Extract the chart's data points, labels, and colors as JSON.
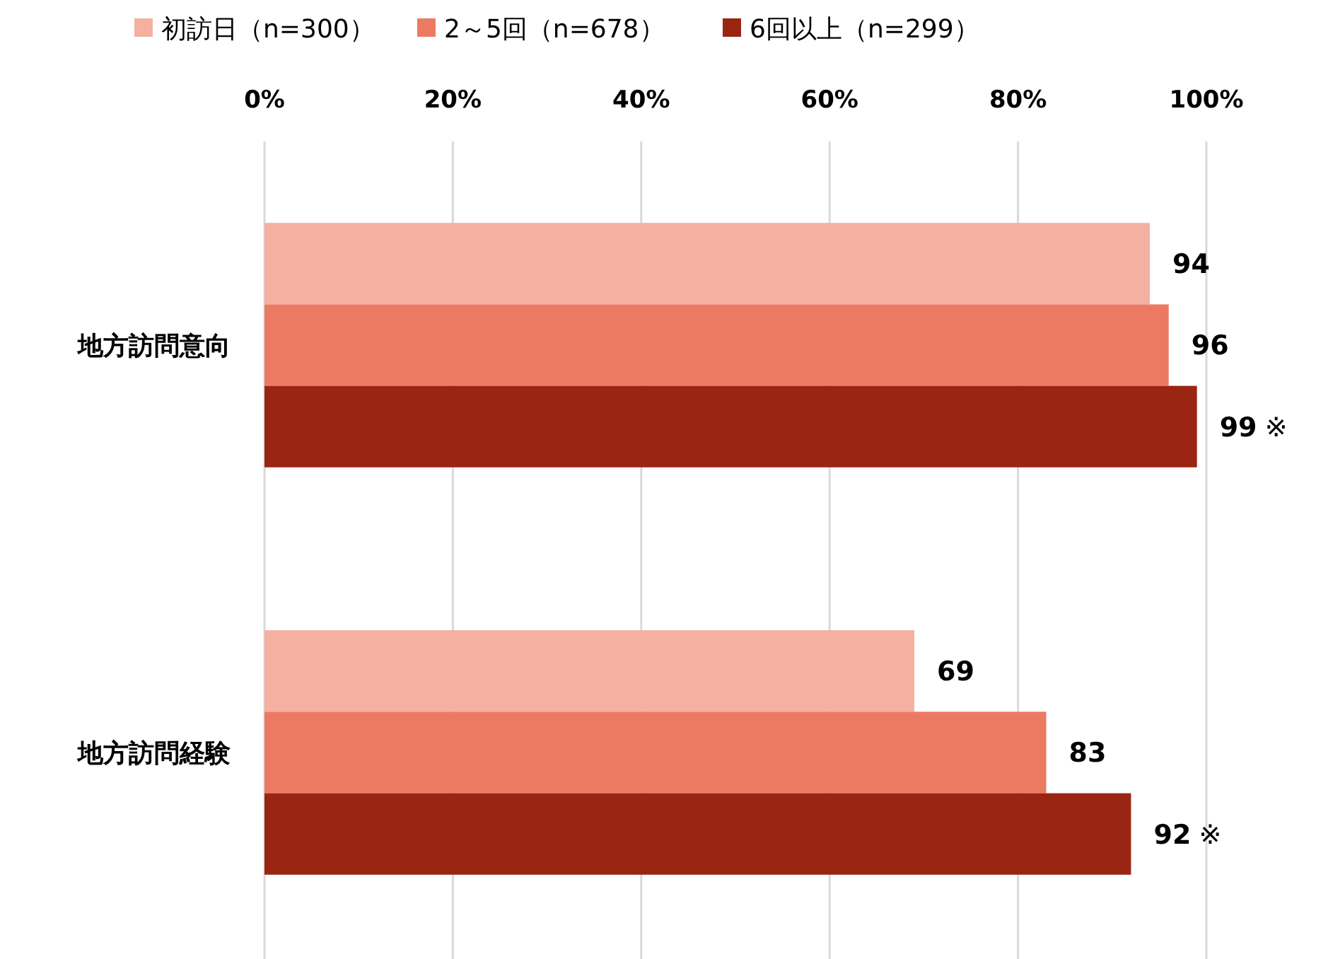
{
  "chart_data": {
    "type": "bar",
    "orientation": "horizontal",
    "categories": [
      "地方訪問意向",
      "地方訪問経験"
    ],
    "series": [
      {
        "name": "初訪日（n=300）",
        "color": "#f4b0a0",
        "values": [
          94,
          69
        ]
      },
      {
        "name": "2～5回（n=678）",
        "color": "#ec7a63",
        "values": [
          96,
          83
        ]
      },
      {
        "name": "6回以上（n=299）",
        "color": "#9a2512",
        "values": [
          99,
          92
        ]
      }
    ],
    "xlim": [
      0,
      100
    ],
    "xticks": [
      {
        "value": 0,
        "label": "0%"
      },
      {
        "value": 20,
        "label": "20%"
      },
      {
        "value": 40,
        "label": "40%"
      },
      {
        "value": 60,
        "label": "60%"
      },
      {
        "value": 80,
        "label": "80%"
      },
      {
        "value": 100,
        "label": "100%"
      }
    ],
    "grid": "x",
    "legend": "top",
    "data_labels": true,
    "annotations": [
      "※",
      "※"
    ]
  }
}
